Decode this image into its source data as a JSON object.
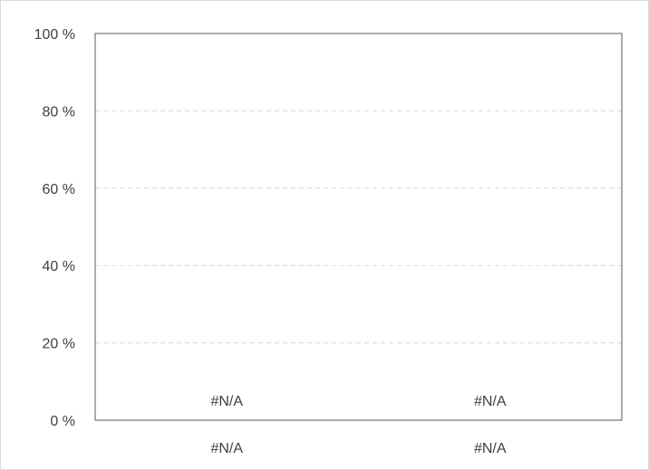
{
  "chart_data": {
    "type": "bar",
    "categories": [
      "#N/A",
      "#N/A"
    ],
    "series": [
      {
        "values": [
          0,
          0
        ],
        "data_labels": [
          "#N/A",
          "#N/A"
        ]
      }
    ],
    "y_ticks": [
      "0 %",
      "20 %",
      "40 %",
      "60 %",
      "80 %",
      "100 %"
    ],
    "ylim": [
      0,
      100
    ],
    "grid": true,
    "colors": {
      "axis": "#595959",
      "grid": "#d9d9d9",
      "text": "#404040"
    }
  }
}
